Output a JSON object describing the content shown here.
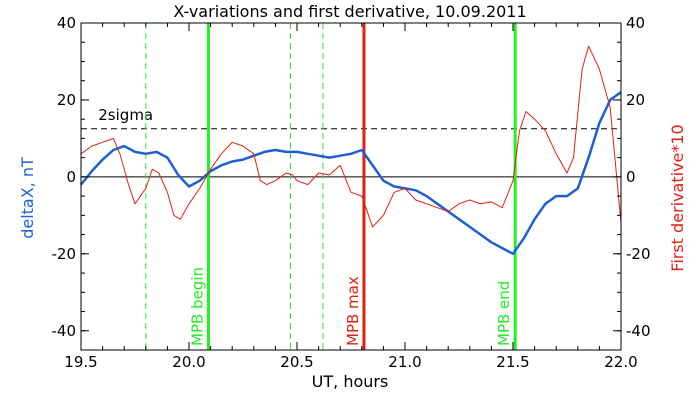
{
  "chart_data": {
    "type": "line",
    "title": "X-variations and first derivative, 10.09.2011",
    "xlabel": "UT, hours",
    "ylabel_left": "deltaX, nT",
    "ylabel_right": "First derivative*10",
    "xlim": [
      19.5,
      22.0
    ],
    "ylim": [
      -45,
      40
    ],
    "x_ticks": [
      19.5,
      20.0,
      20.5,
      21.0,
      21.5,
      22.0
    ],
    "x_tick_labels": [
      "19.5",
      "20.0",
      "20.5",
      "21.0",
      "21.5",
      "22.0"
    ],
    "y_ticks": [
      -40,
      -20,
      0,
      20,
      40
    ],
    "y_tick_labels_left": [
      "-40",
      "-20",
      "0",
      "20",
      "40"
    ],
    "y_tick_labels_right": [
      "-40",
      "-20",
      "0",
      "20",
      "40"
    ],
    "grid": false,
    "colors": {
      "deltaX": "#1f5fd6",
      "derivative": "#e02010",
      "mpb_marker": "#22ee22",
      "mpb_max_marker": "#e02010",
      "axis": "#000000",
      "ylabel_left": "#1f5fd6",
      "ylabel_right": "#e02010"
    },
    "series": [
      {
        "key": "deltaX",
        "x": [
          19.5,
          19.55,
          19.6,
          19.65,
          19.7,
          19.75,
          19.8,
          19.85,
          19.9,
          19.95,
          20.0,
          20.05,
          20.1,
          20.15,
          20.2,
          20.25,
          20.3,
          20.35,
          20.4,
          20.45,
          20.5,
          20.55,
          20.6,
          20.65,
          20.7,
          20.75,
          20.8,
          20.85,
          20.9,
          20.95,
          21.0,
          21.05,
          21.1,
          21.15,
          21.2,
          21.25,
          21.3,
          21.35,
          21.4,
          21.45,
          21.5,
          21.55,
          21.6,
          21.65,
          21.7,
          21.75,
          21.8,
          21.85,
          21.9,
          21.95,
          22.0
        ],
        "values": [
          -2,
          1.5,
          4.5,
          7,
          8,
          6.5,
          6,
          6.5,
          5,
          0.5,
          -2.5,
          -1,
          1.5,
          3,
          4,
          4.5,
          5.5,
          6.5,
          7,
          6.5,
          6.5,
          6,
          5.5,
          5,
          5.5,
          6,
          7,
          3,
          -1,
          -2.5,
          -3,
          -3.5,
          -5,
          -7,
          -9,
          -11,
          -13,
          -15,
          -17,
          -18.5,
          -20,
          -16,
          -11,
          -7,
          -5,
          -5,
          -3,
          5,
          14,
          20,
          22
        ]
      },
      {
        "key": "derivative",
        "x": [
          19.5,
          19.55,
          19.6,
          19.65,
          19.68,
          19.72,
          19.75,
          19.8,
          19.83,
          19.86,
          19.9,
          19.93,
          19.96,
          20.0,
          20.05,
          20.1,
          20.15,
          20.2,
          20.25,
          20.3,
          20.33,
          20.36,
          20.4,
          20.45,
          20.48,
          20.5,
          20.55,
          20.6,
          20.65,
          20.7,
          20.75,
          20.8,
          20.85,
          20.9,
          20.95,
          21.0,
          21.05,
          21.1,
          21.15,
          21.2,
          21.25,
          21.3,
          21.35,
          21.4,
          21.45,
          21.5,
          21.53,
          21.56,
          21.6,
          21.65,
          21.7,
          21.75,
          21.78,
          21.82,
          21.85,
          21.9,
          21.95,
          22.0
        ],
        "values": [
          6,
          8,
          9,
          10,
          6,
          -2,
          -7,
          -3,
          2,
          1,
          -4,
          -10,
          -11,
          -7,
          -3,
          2,
          6,
          9,
          8,
          6,
          -1,
          -2,
          -1,
          1,
          0.5,
          -1,
          -2,
          1,
          0.5,
          3,
          -4,
          -5,
          -13,
          -10,
          -4,
          -3,
          -6,
          -7,
          -8,
          -9,
          -7,
          -6,
          -7,
          -6.5,
          -8,
          -1,
          12,
          17,
          15,
          12,
          6,
          1,
          5,
          28,
          34,
          28,
          18,
          -12
        ]
      }
    ],
    "threshold": {
      "label": "2sigma",
      "value": 12.5
    },
    "vertical_markers": [
      {
        "x": 19.8,
        "style": "dashed",
        "kind": "mpb"
      },
      {
        "x": 20.09,
        "style": "solid",
        "kind": "mpb",
        "label": "MPB begin"
      },
      {
        "x": 20.47,
        "style": "dashed",
        "kind": "mpb"
      },
      {
        "x": 20.62,
        "style": "dashed",
        "kind": "mpb"
      },
      {
        "x": 20.81,
        "style": "solid",
        "kind": "mpb_max",
        "label": "MPB max"
      },
      {
        "x": 21.51,
        "style": "solid",
        "kind": "mpb",
        "label": "MPB end"
      }
    ]
  }
}
